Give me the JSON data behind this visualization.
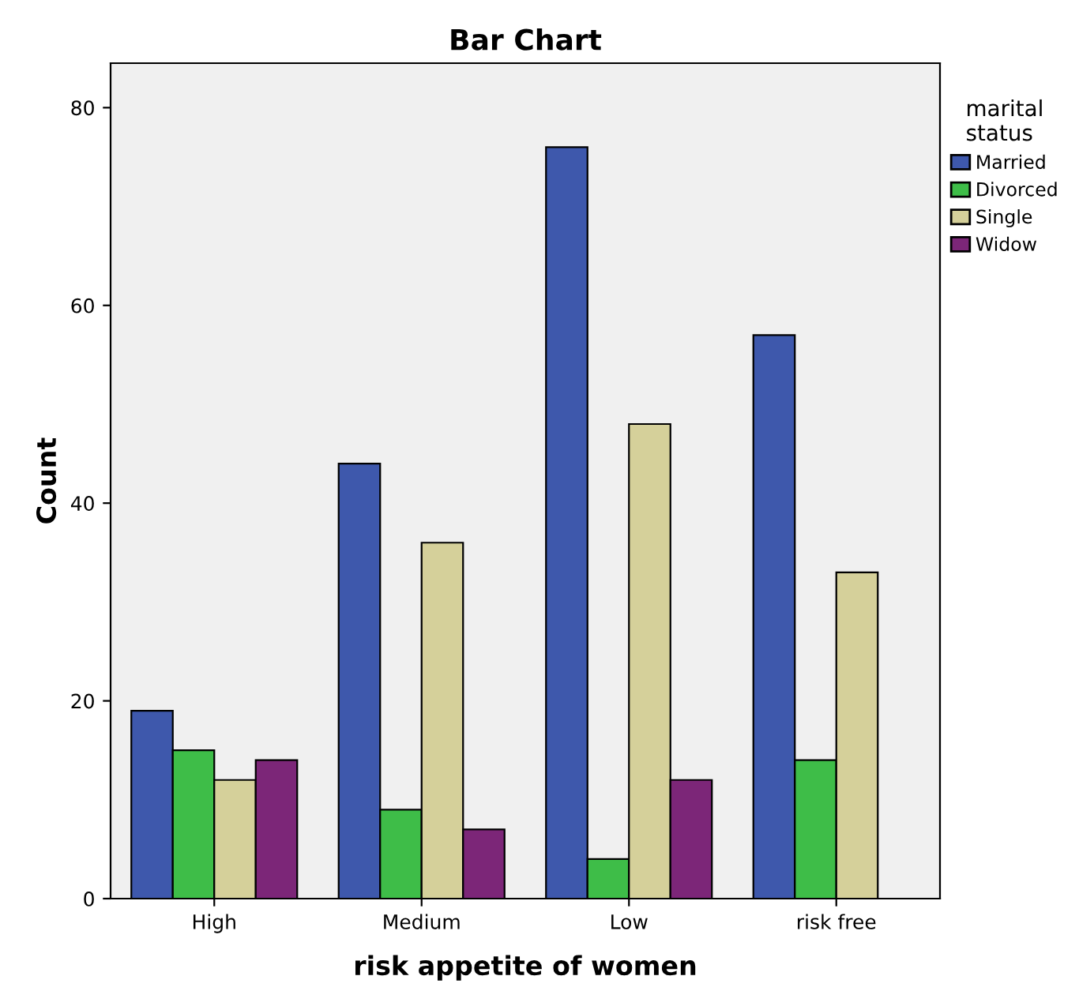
{
  "chart_data": {
    "type": "bar",
    "title": "Bar Chart",
    "xlabel": "risk appetite of women",
    "ylabel": "Count",
    "legend_title": "marital\nstatus",
    "categories": [
      "High",
      "Medium",
      "Low",
      "risk free"
    ],
    "series": [
      {
        "name": "Married",
        "color": "#3e58ac",
        "values": [
          19,
          44,
          76,
          57
        ]
      },
      {
        "name": "Divorced",
        "color": "#3ebd48",
        "values": [
          15,
          9,
          4,
          14
        ]
      },
      {
        "name": "Single",
        "color": "#d5d09a",
        "values": [
          12,
          36,
          48,
          33
        ]
      },
      {
        "name": "Widow",
        "color": "#7c2678",
        "values": [
          14,
          7,
          12,
          null
        ]
      }
    ],
    "ylim": [
      0,
      84.5
    ],
    "yticks": [
      0,
      20,
      40,
      60,
      80
    ],
    "grid": false,
    "legend": "top right"
  }
}
